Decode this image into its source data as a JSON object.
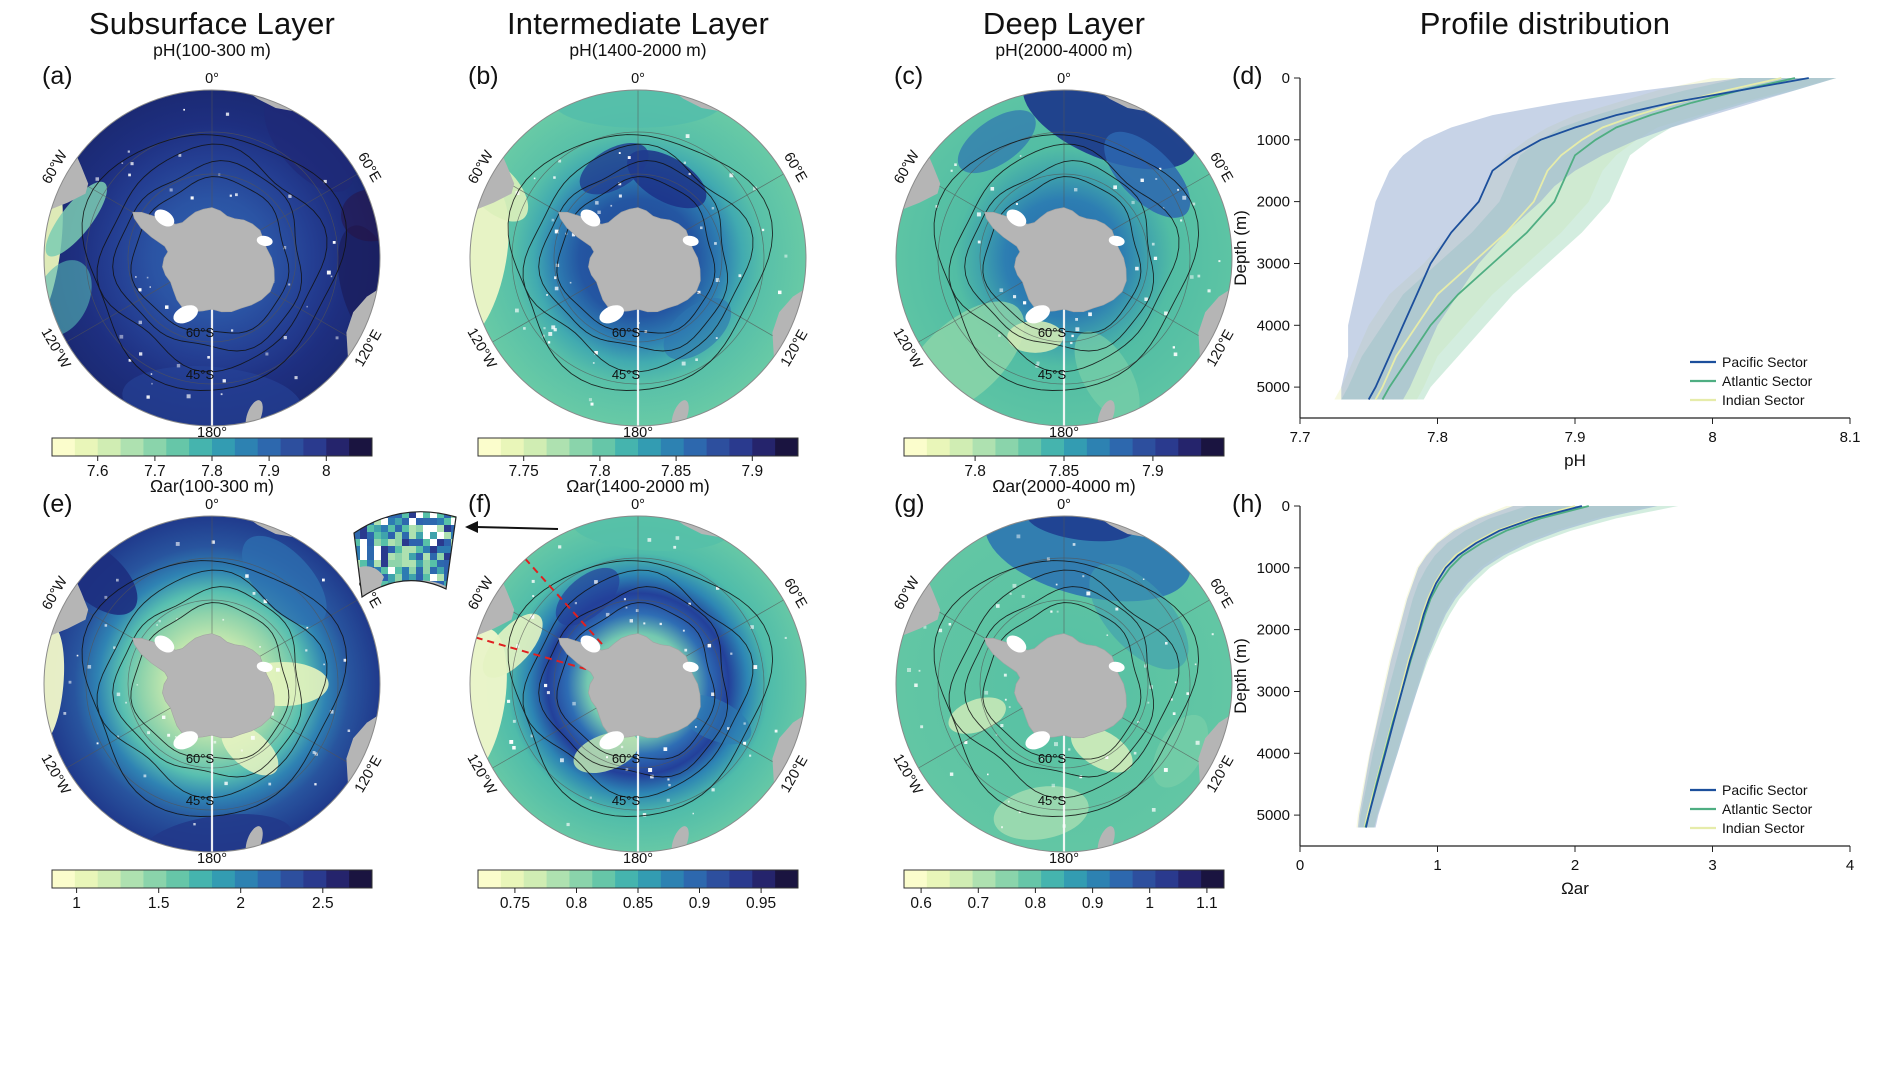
{
  "column_titles": [
    "Subsurface Layer",
    "Intermediate Layer",
    "Deep Layer",
    "Profile distribution"
  ],
  "colors": {
    "background": "#ffffff",
    "land": "#b5b5b5",
    "graticule": "#555555",
    "contour": "#111111",
    "red_dashed_sector": "#e02020",
    "pacific_sector": "#1c4f9c",
    "atlantic_sector": "#4fae82",
    "indian_sector": "#e6ecaa",
    "colormap": [
      "#fbfdcc",
      "#e9f6b9",
      "#d0edb3",
      "#aee1b0",
      "#8ad4ab",
      "#66c6a8",
      "#45b4ae",
      "#339cb2",
      "#2d82b2",
      "#2d68ae",
      "#2d4f9e",
      "#2a3a8e",
      "#25246c",
      "#1a1440"
    ]
  },
  "map_labels": {
    "meridians": [
      "0°",
      "60°E",
      "120°E",
      "180°",
      "120°W",
      "60°W"
    ],
    "parallels": [
      "60°S",
      "45°S"
    ]
  },
  "panels": {
    "a": {
      "label": "(a)",
      "subtitle": "pH(100-300 m)",
      "colorbar": {
        "min": 7.52,
        "max": 8.08,
        "tick_values": [
          7.6,
          7.7,
          7.8,
          7.9,
          8
        ],
        "tick_labels": [
          "7.6",
          "7.7",
          "7.8",
          "7.9",
          "8"
        ]
      }
    },
    "b": {
      "label": "(b)",
      "subtitle": "pH(1400-2000 m)",
      "colorbar": {
        "min": 7.72,
        "max": 7.93,
        "tick_values": [
          7.75,
          7.8,
          7.85,
          7.9
        ],
        "tick_labels": [
          "7.75",
          "7.8",
          "7.85",
          "7.9"
        ]
      }
    },
    "c": {
      "label": "(c)",
      "subtitle": "pH(2000-4000 m)",
      "colorbar": {
        "min": 7.76,
        "max": 7.94,
        "tick_values": [
          7.8,
          7.85,
          7.9
        ],
        "tick_labels": [
          "7.8",
          "7.85",
          "7.9"
        ]
      }
    },
    "d": {
      "label": "(d)"
    },
    "e": {
      "label": "(e)",
      "subtitle": "Ωar(100-300 m)",
      "colorbar": {
        "min": 0.85,
        "max": 2.8,
        "tick_values": [
          1,
          1.5,
          2,
          2.5
        ],
        "tick_labels": [
          "1",
          "1.5",
          "2",
          "2.5"
        ]
      }
    },
    "f": {
      "label": "(f)",
      "subtitle": "Ωar(1400-2000 m)",
      "colorbar": {
        "min": 0.72,
        "max": 0.98,
        "tick_values": [
          0.75,
          0.8,
          0.85,
          0.9,
          0.95
        ],
        "tick_labels": [
          "0.75",
          "0.8",
          "0.85",
          "0.9",
          "0.95"
        ]
      }
    },
    "g": {
      "label": "(g)",
      "subtitle": "Ωar(2000-4000 m)",
      "colorbar": {
        "min": 0.57,
        "max": 1.13,
        "tick_values": [
          0.6,
          0.7,
          0.8,
          0.9,
          1,
          1.1
        ],
        "tick_labels": [
          "0.6",
          "0.7",
          "0.8",
          "0.9",
          "1",
          "1.1"
        ]
      }
    },
    "h": {
      "label": "(h)"
    }
  },
  "chart_data": [
    {
      "type": "map",
      "panel": "a",
      "layer": "Subsurface Layer",
      "variable": "pH",
      "depth_range": "100-300 m",
      "projection": "south polar stereographic",
      "meridian_labels": [
        "0°",
        "60°E",
        "120°E",
        "180°",
        "120°W",
        "60°W"
      ],
      "parallel_labels": [
        "60°S",
        "45°S"
      ]
    },
    {
      "type": "map",
      "panel": "b",
      "layer": "Intermediate Layer",
      "variable": "pH",
      "depth_range": "1400-2000 m",
      "projection": "south polar stereographic",
      "meridian_labels": [
        "0°",
        "60°E",
        "120°E",
        "180°",
        "120°W",
        "60°W"
      ],
      "parallel_labels": [
        "60°S",
        "45°S"
      ]
    },
    {
      "type": "map",
      "panel": "c",
      "layer": "Deep Layer",
      "variable": "pH",
      "depth_range": "2000-4000 m",
      "projection": "south polar stereographic",
      "meridian_labels": [
        "0°",
        "60°E",
        "120°E",
        "180°",
        "120°W",
        "60°W"
      ],
      "parallel_labels": [
        "60°S",
        "45°S"
      ]
    },
    {
      "type": "map",
      "panel": "e",
      "layer": "Subsurface Layer",
      "variable": "Ωar",
      "depth_range": "100-300 m",
      "projection": "south polar stereographic",
      "meridian_labels": [
        "0°",
        "60°E",
        "120°E",
        "180°",
        "120°W",
        "60°W"
      ],
      "parallel_labels": [
        "60°S",
        "45°S"
      ]
    },
    {
      "type": "map",
      "panel": "f",
      "layer": "Intermediate Layer",
      "variable": "Ωar",
      "depth_range": "1400-2000 m",
      "projection": "south polar stereographic",
      "meridian_labels": [
        "0°",
        "60°E",
        "120°E",
        "180°",
        "120°W",
        "60°W"
      ],
      "parallel_labels": [
        "60°S",
        "45°S"
      ],
      "inset_region_marked": true
    },
    {
      "type": "map",
      "panel": "g",
      "layer": "Deep Layer",
      "variable": "Ωar",
      "depth_range": "2000-4000 m",
      "projection": "south polar stereographic",
      "meridian_labels": [
        "0°",
        "60°E",
        "120°E",
        "180°",
        "120°W",
        "60°W"
      ],
      "parallel_labels": [
        "60°S",
        "45°S"
      ]
    },
    {
      "type": "line",
      "panel": "d",
      "title": "Profile distribution",
      "xlabel": "pH",
      "ylabel": "Depth (m)",
      "xlim": [
        7.7,
        8.1
      ],
      "ylim": [
        0,
        5500
      ],
      "y_inverted": true,
      "xticks": [
        7.7,
        7.8,
        7.9,
        8,
        8.1
      ],
      "xtick_labels": [
        "7.7",
        "7.8",
        "7.9",
        "8",
        "8.1"
      ],
      "yticks": [
        0,
        1000,
        2000,
        3000,
        4000,
        5000
      ],
      "legend_position": "bottom-right",
      "depths": [
        0,
        200,
        400,
        600,
        800,
        1000,
        1250,
        1500,
        1750,
        2000,
        2500,
        3000,
        3500,
        4000,
        4500,
        5000,
        5200
      ],
      "series": [
        {
          "name": "Pacific Sector",
          "color": "#1c4f9c",
          "band_color": "#8fa8d0",
          "values": [
            8.07,
            8.02,
            7.97,
            7.93,
            7.9,
            7.875,
            7.855,
            7.84,
            7.835,
            7.83,
            7.81,
            7.795,
            7.785,
            7.775,
            7.765,
            7.755,
            7.75
          ],
          "lo": [
            8.02,
            7.95,
            7.89,
            7.84,
            7.81,
            7.79,
            7.775,
            7.765,
            7.76,
            7.755,
            7.75,
            7.745,
            7.74,
            7.735,
            7.735,
            7.73,
            7.73
          ],
          "hi": [
            8.09,
            8.06,
            8.03,
            8.0,
            7.97,
            7.945,
            7.92,
            7.9,
            7.885,
            7.875,
            7.85,
            7.83,
            7.815,
            7.8,
            7.79,
            7.78,
            7.775
          ]
        },
        {
          "name": "Atlantic Sector",
          "color": "#4fae82",
          "band_color": "#a8dcc0",
          "values": [
            8.06,
            8.02,
            7.985,
            7.955,
            7.93,
            7.915,
            7.9,
            7.895,
            7.89,
            7.885,
            7.865,
            7.84,
            7.815,
            7.795,
            7.78,
            7.765,
            7.76
          ],
          "lo": [
            8.02,
            7.98,
            7.945,
            7.915,
            7.89,
            7.875,
            7.86,
            7.855,
            7.85,
            7.845,
            7.825,
            7.8,
            7.775,
            7.76,
            7.745,
            7.735,
            7.73
          ],
          "hi": [
            8.09,
            8.06,
            8.025,
            7.995,
            7.97,
            7.955,
            7.94,
            7.935,
            7.93,
            7.925,
            7.905,
            7.88,
            7.855,
            7.835,
            7.815,
            7.795,
            7.79
          ]
        },
        {
          "name": "Indian Sector",
          "color": "#e6ecaa",
          "band_color": "#f0f3c6",
          "values": [
            8.05,
            8.01,
            7.975,
            7.945,
            7.92,
            7.905,
            7.89,
            7.88,
            7.875,
            7.87,
            7.85,
            7.825,
            7.8,
            7.785,
            7.77,
            7.76,
            7.755
          ],
          "lo": [
            8.0,
            7.96,
            7.93,
            7.9,
            7.88,
            7.865,
            7.85,
            7.84,
            7.835,
            7.83,
            7.81,
            7.79,
            7.765,
            7.75,
            7.74,
            7.73,
            7.725
          ],
          "hi": [
            8.09,
            8.055,
            8.02,
            7.99,
            7.96,
            7.945,
            7.93,
            7.92,
            7.915,
            7.91,
            7.89,
            7.865,
            7.84,
            7.82,
            7.8,
            7.79,
            7.785
          ]
        }
      ]
    },
    {
      "type": "line",
      "panel": "h",
      "xlabel": "Ωar",
      "ylabel": "Depth (m)",
      "xlim": [
        0,
        4
      ],
      "ylim": [
        0,
        5500
      ],
      "y_inverted": true,
      "xticks": [
        0,
        1,
        2,
        3,
        4
      ],
      "xtick_labels": [
        "0",
        "1",
        "2",
        "3",
        "4"
      ],
      "yticks": [
        0,
        1000,
        2000,
        3000,
        4000,
        5000
      ],
      "legend_position": "bottom-right",
      "depths": [
        0,
        200,
        400,
        600,
        800,
        1000,
        1250,
        1500,
        1750,
        2000,
        2500,
        3000,
        3500,
        4000,
        4500,
        5000,
        5200
      ],
      "series": [
        {
          "name": "Pacific Sector",
          "color": "#1c4f9c",
          "band_color": "#8fa8d0",
          "values": [
            2.05,
            1.7,
            1.45,
            1.28,
            1.15,
            1.06,
            0.99,
            0.94,
            0.9,
            0.87,
            0.8,
            0.74,
            0.68,
            0.62,
            0.56,
            0.5,
            0.48
          ],
          "lo": [
            1.55,
            1.3,
            1.12,
            1.0,
            0.92,
            0.86,
            0.82,
            0.78,
            0.75,
            0.72,
            0.66,
            0.61,
            0.56,
            0.51,
            0.47,
            0.43,
            0.42
          ],
          "hi": [
            2.6,
            2.2,
            1.9,
            1.66,
            1.48,
            1.34,
            1.22,
            1.13,
            1.06,
            1.01,
            0.92,
            0.85,
            0.78,
            0.71,
            0.64,
            0.57,
            0.55
          ]
        },
        {
          "name": "Atlantic Sector",
          "color": "#4fae82",
          "band_color": "#a8dcc0",
          "values": [
            2.1,
            1.75,
            1.5,
            1.32,
            1.18,
            1.09,
            1.01,
            0.95,
            0.91,
            0.875,
            0.805,
            0.74,
            0.675,
            0.615,
            0.555,
            0.5,
            0.475
          ],
          "lo": [
            1.65,
            1.38,
            1.2,
            1.07,
            0.98,
            0.92,
            0.86,
            0.82,
            0.79,
            0.76,
            0.7,
            0.64,
            0.585,
            0.53,
            0.485,
            0.44,
            0.43
          ],
          "hi": [
            2.75,
            2.3,
            1.97,
            1.72,
            1.52,
            1.38,
            1.26,
            1.16,
            1.09,
            1.03,
            0.93,
            0.85,
            0.775,
            0.71,
            0.635,
            0.565,
            0.54
          ]
        },
        {
          "name": "Indian Sector",
          "color": "#e6ecaa",
          "band_color": "#f0f3c6",
          "values": [
            2.0,
            1.68,
            1.43,
            1.26,
            1.13,
            1.05,
            0.98,
            0.93,
            0.89,
            0.86,
            0.79,
            0.73,
            0.67,
            0.61,
            0.55,
            0.49,
            0.47
          ],
          "lo": [
            1.5,
            1.28,
            1.1,
            0.99,
            0.91,
            0.85,
            0.81,
            0.77,
            0.74,
            0.71,
            0.65,
            0.6,
            0.555,
            0.505,
            0.46,
            0.42,
            0.41
          ],
          "hi": [
            2.55,
            2.15,
            1.85,
            1.62,
            1.44,
            1.31,
            1.2,
            1.11,
            1.05,
            1.0,
            0.91,
            0.84,
            0.77,
            0.7,
            0.63,
            0.56,
            0.54
          ]
        }
      ]
    }
  ]
}
